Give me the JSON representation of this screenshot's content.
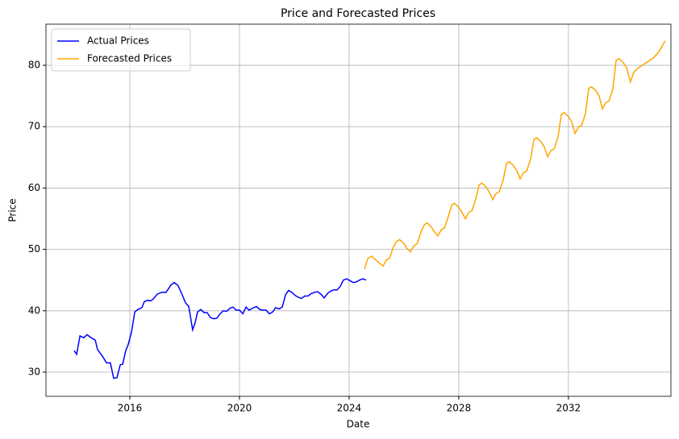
{
  "chart_data": {
    "type": "line",
    "title": "Price and Forecasted Prices",
    "x_label": "Date",
    "y_label": "Price",
    "xlim": [
      2012.94,
      2035.74
    ],
    "ylim": [
      26.06,
      86.7
    ],
    "xticks": [
      2016,
      2020,
      2024,
      2028,
      2032
    ],
    "yticks": [
      30,
      40,
      50,
      60,
      70,
      80
    ],
    "grid": true,
    "legend": "upper left",
    "series": [
      {
        "name": "Actual Prices",
        "color": "#0000ff",
        "x": [
          2013.97,
          2014.06,
          2014.18,
          2014.32,
          2014.44,
          2014.59,
          2014.74,
          2014.82,
          2015.0,
          2015.15,
          2015.29,
          2015.41,
          2015.53,
          2015.65,
          2015.74,
          2015.85,
          2015.94,
          2016.06,
          2016.18,
          2016.29,
          2016.44,
          2016.53,
          2016.65,
          2016.76,
          2016.85,
          2017.0,
          2017.15,
          2017.32,
          2017.5,
          2017.62,
          2017.76,
          2017.91,
          2018.03,
          2018.15,
          2018.29,
          2018.38,
          2018.47,
          2018.59,
          2018.71,
          2018.82,
          2018.94,
          2019.06,
          2019.18,
          2019.29,
          2019.41,
          2019.53,
          2019.65,
          2019.76,
          2019.88,
          2020.0,
          2020.12,
          2020.24,
          2020.35,
          2020.47,
          2020.62,
          2020.74,
          2020.85,
          2020.97,
          2021.09,
          2021.21,
          2021.32,
          2021.44,
          2021.56,
          2021.68,
          2021.79,
          2021.91,
          2022.03,
          2022.15,
          2022.26,
          2022.38,
          2022.5,
          2022.62,
          2022.74,
          2022.85,
          2022.97,
          2023.09,
          2023.21,
          2023.32,
          2023.44,
          2023.56,
          2023.68,
          2023.79,
          2023.91,
          2024.03,
          2024.15,
          2024.26,
          2024.38,
          2024.5,
          2024.62
        ],
        "values": [
          33.5,
          32.9,
          35.9,
          35.6,
          36.1,
          35.6,
          35.2,
          33.7,
          32.6,
          31.5,
          31.5,
          29.0,
          29.1,
          31.2,
          31.3,
          33.5,
          34.5,
          36.5,
          39.8,
          40.2,
          40.5,
          41.5,
          41.7,
          41.6,
          41.9,
          42.7,
          43.0,
          43.0,
          44.2,
          44.6,
          44.1,
          42.6,
          41.3,
          40.7,
          36.9,
          38.0,
          39.8,
          40.2,
          39.7,
          39.7,
          38.9,
          38.7,
          38.8,
          39.5,
          40.0,
          39.9,
          40.4,
          40.6,
          40.1,
          40.1,
          39.5,
          40.6,
          40.1,
          40.4,
          40.7,
          40.2,
          40.1,
          40.1,
          39.5,
          39.8,
          40.5,
          40.3,
          40.6,
          42.6,
          43.3,
          43.0,
          42.5,
          42.2,
          42.0,
          42.4,
          42.4,
          42.8,
          43.0,
          43.1,
          42.7,
          42.1,
          42.8,
          43.2,
          43.4,
          43.4,
          44.0,
          45.0,
          45.2,
          44.9,
          44.6,
          44.7,
          45.0,
          45.2,
          45.0
        ]
      },
      {
        "name": "Forecasted Prices",
        "color": "#ffa500",
        "x": [
          2024.56,
          2024.68,
          2024.82,
          2024.97,
          2025.12,
          2025.24,
          2025.36,
          2025.48,
          2025.62,
          2025.74,
          2025.84,
          2025.99,
          2026.12,
          2026.24,
          2026.36,
          2026.48,
          2026.62,
          2026.74,
          2026.84,
          2026.99,
          2027.12,
          2027.24,
          2027.36,
          2027.48,
          2027.62,
          2027.74,
          2027.84,
          2027.99,
          2028.12,
          2028.24,
          2028.36,
          2028.48,
          2028.62,
          2028.74,
          2028.84,
          2028.99,
          2029.12,
          2029.24,
          2029.36,
          2029.48,
          2029.62,
          2029.74,
          2029.84,
          2029.99,
          2030.12,
          2030.24,
          2030.36,
          2030.48,
          2030.62,
          2030.74,
          2030.84,
          2030.99,
          2031.12,
          2031.24,
          2031.36,
          2031.48,
          2031.62,
          2031.74,
          2031.84,
          2031.99,
          2032.12,
          2032.24,
          2032.36,
          2032.48,
          2032.62,
          2032.74,
          2032.84,
          2032.99,
          2033.12,
          2033.24,
          2033.36,
          2033.48,
          2033.62,
          2033.74,
          2033.84,
          2033.99,
          2034.12,
          2034.26,
          2034.38,
          2034.52,
          2034.7,
          2034.9,
          2035.1,
          2035.3,
          2035.53
        ],
        "values": [
          46.8,
          48.5,
          48.9,
          48.3,
          47.7,
          47.3,
          48.3,
          48.6,
          50.5,
          51.3,
          51.6,
          51.0,
          50.1,
          49.6,
          50.6,
          50.9,
          52.8,
          54.0,
          54.3,
          53.7,
          52.8,
          52.2,
          53.2,
          53.5,
          55.4,
          57.2,
          57.5,
          56.9,
          56.0,
          55.0,
          56.0,
          56.3,
          58.2,
          60.5,
          60.8,
          60.2,
          59.3,
          58.1,
          59.1,
          59.4,
          61.3,
          64.0,
          64.3,
          63.7,
          62.8,
          61.5,
          62.5,
          62.8,
          64.7,
          67.9,
          68.2,
          67.6,
          66.7,
          65.1,
          66.1,
          66.4,
          68.3,
          72.0,
          72.3,
          71.7,
          70.8,
          68.9,
          69.9,
          70.2,
          72.1,
          76.2,
          76.5,
          75.9,
          75.0,
          72.9,
          73.9,
          74.2,
          76.1,
          80.8,
          81.1,
          80.5,
          79.6,
          77.3,
          78.8,
          79.5,
          80.0,
          80.6,
          81.2,
          82.2,
          84.0
        ]
      }
    ]
  }
}
